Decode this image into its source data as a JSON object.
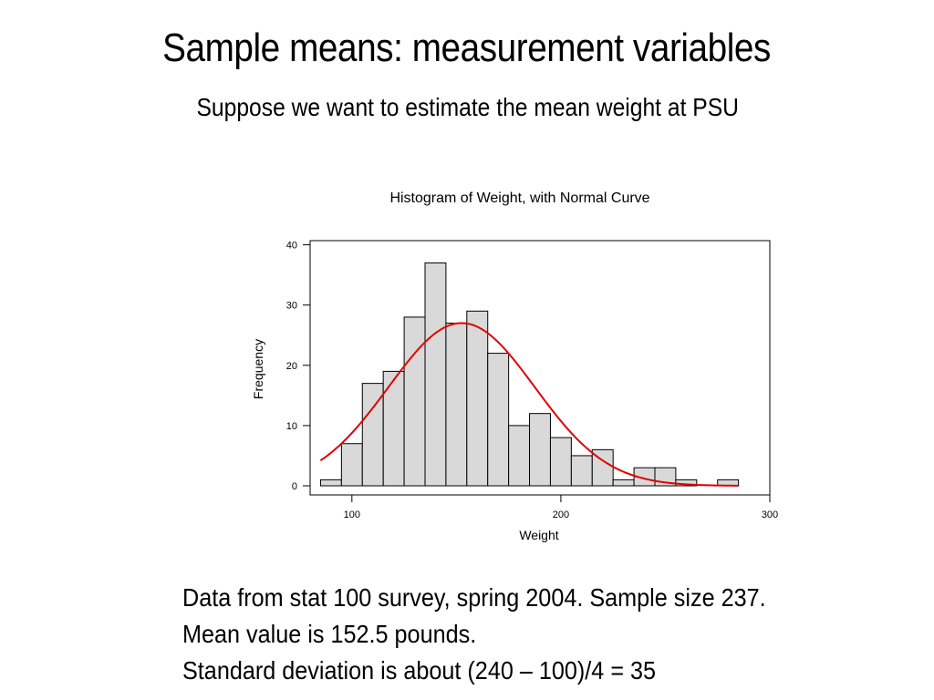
{
  "slide": {
    "title": "Sample means: measurement variables",
    "subtitle": "Suppose we want to estimate the mean weight at PSU",
    "notes": [
      "Data from stat 100 survey, spring 2004.  Sample size 237.",
      "Mean value is 152.5 pounds.",
      "Standard deviation is about (240 – 100)/4 = 35"
    ]
  },
  "chart_data": {
    "type": "bar",
    "title": "Histogram of Weight, with Normal Curve",
    "xlabel": "Weight",
    "ylabel": "Frequency",
    "xlim": [
      80,
      300
    ],
    "ylim": [
      0,
      40
    ],
    "xticks": [
      100,
      200,
      300
    ],
    "yticks": [
      0,
      10,
      20,
      30,
      40
    ],
    "grid": false,
    "bin_width": 10,
    "bins": [
      {
        "x0": 85,
        "x1": 95,
        "count": 1
      },
      {
        "x0": 95,
        "x1": 105,
        "count": 7
      },
      {
        "x0": 105,
        "x1": 115,
        "count": 17
      },
      {
        "x0": 115,
        "x1": 125,
        "count": 19
      },
      {
        "x0": 125,
        "x1": 135,
        "count": 28
      },
      {
        "x0": 135,
        "x1": 145,
        "count": 37
      },
      {
        "x0": 145,
        "x1": 155,
        "count": 27
      },
      {
        "x0": 155,
        "x1": 165,
        "count": 29
      },
      {
        "x0": 165,
        "x1": 175,
        "count": 22
      },
      {
        "x0": 175,
        "x1": 185,
        "count": 10
      },
      {
        "x0": 185,
        "x1": 195,
        "count": 12
      },
      {
        "x0": 195,
        "x1": 205,
        "count": 8
      },
      {
        "x0": 205,
        "x1": 215,
        "count": 5
      },
      {
        "x0": 215,
        "x1": 225,
        "count": 6
      },
      {
        "x0": 225,
        "x1": 235,
        "count": 1
      },
      {
        "x0": 235,
        "x1": 245,
        "count": 3
      },
      {
        "x0": 245,
        "x1": 255,
        "count": 3
      },
      {
        "x0": 255,
        "x1": 265,
        "count": 1
      },
      {
        "x0": 265,
        "x1": 275,
        "count": 0
      },
      {
        "x0": 275,
        "x1": 285,
        "count": 1
      }
    ],
    "normal_curve": {
      "mean": 152.5,
      "sd": 35,
      "n": 237,
      "x_range": [
        85,
        285
      ],
      "color": "#e00000"
    },
    "bar_fill": "#d9d9d9",
    "bar_stroke": "#000000"
  }
}
